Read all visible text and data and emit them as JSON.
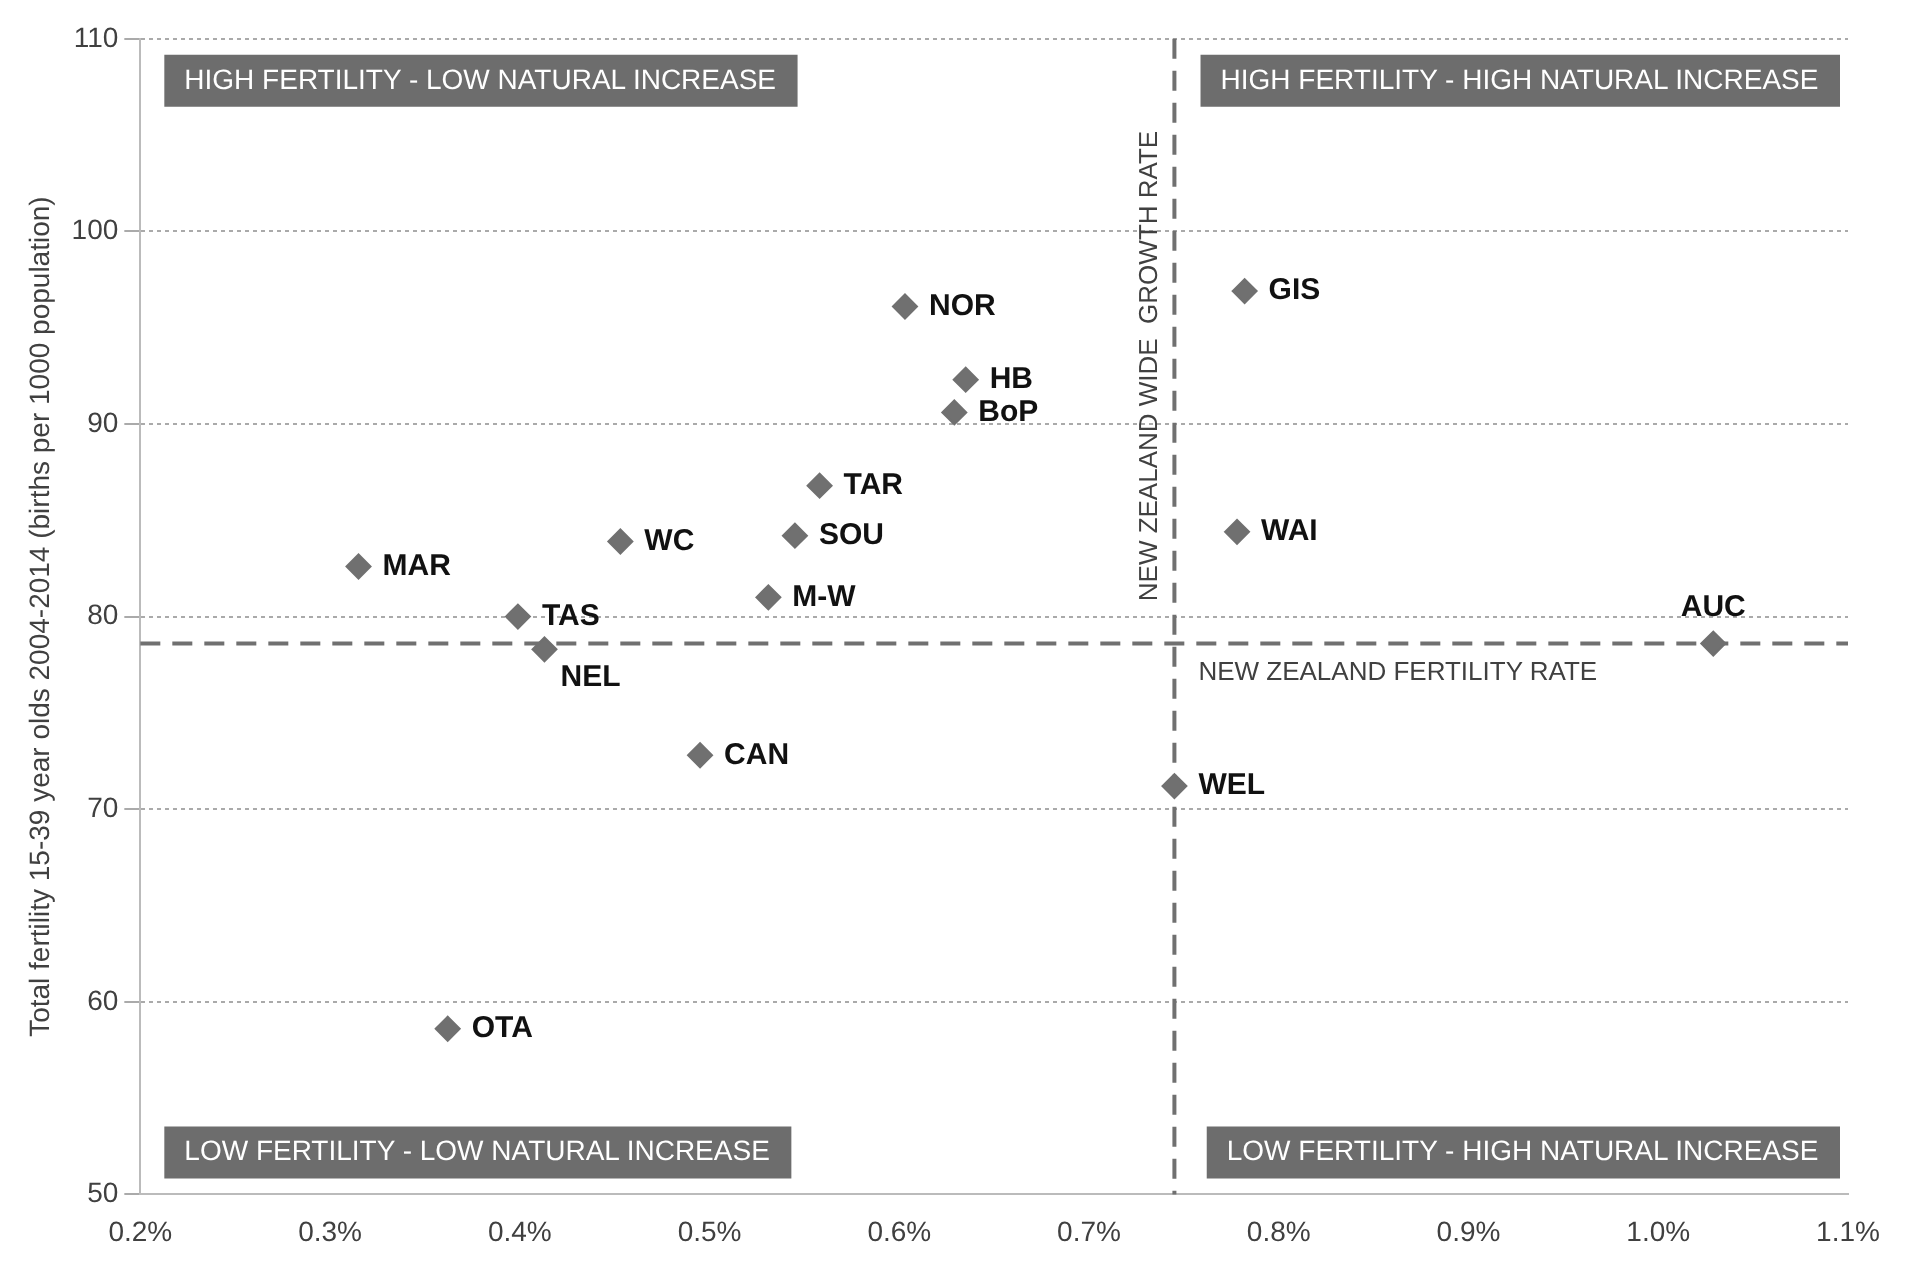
{
  "chart_data": {
    "type": "scatter",
    "ylabel": "Total fertility 15-39 year olds 2004-2014 (births per 1000 population)",
    "series": [
      {
        "color": "#707070",
        "x": [
          0.315,
          0.399,
          0.413,
          0.453,
          0.558,
          0.545,
          0.531,
          0.603,
          0.635,
          0.629,
          0.782,
          0.778,
          0.495,
          0.362,
          0.745,
          1.029
        ],
        "values": [
          82.6,
          80.0,
          78.3,
          83.9,
          86.8,
          84.2,
          81.0,
          96.1,
          92.3,
          90.6,
          96.9,
          84.4,
          72.8,
          58.6,
          71.2,
          78.6
        ]
      }
    ],
    "marker": "diamond",
    "grid": "y",
    "legend": false,
    "xlim": [
      0.2,
      1.1
    ],
    "ylim": [
      50,
      110
    ],
    "xticks": [
      {
        "value": 0.2,
        "label": "0.2%"
      },
      {
        "value": 0.3,
        "label": "0.3%"
      },
      {
        "value": 0.4,
        "label": "0.4%"
      },
      {
        "value": 0.5,
        "label": "0.5%"
      },
      {
        "value": 0.6,
        "label": "0.6%"
      },
      {
        "value": 0.7,
        "label": "0.7%"
      },
      {
        "value": 0.8,
        "label": "0.8%"
      },
      {
        "value": 0.9,
        "label": "0.9%"
      },
      {
        "value": 1.0,
        "label": "1.0%"
      },
      {
        "value": 1.1,
        "label": "1.1%"
      }
    ],
    "yticks": [
      50,
      60,
      70,
      80,
      90,
      100,
      110
    ],
    "ref_lines": [
      {
        "axis": "x",
        "value": 0.745,
        "label": "NEW ZEALAND WIDE  GROWTH RATE",
        "color": "#707070",
        "line_style": "dashed"
      },
      {
        "axis": "y",
        "value": 78.6,
        "label": "NEW ZEALAND FERTILITY RATE",
        "color": "#707070",
        "line_style": "dashed"
      }
    ],
    "annotations": [
      "HIGH FERTILITY - LOW NATURAL INCREASE",
      "HIGH FERTILITY - HIGH NATURAL INCREASE",
      "LOW FERTILITY - LOW NATURAL INCREASE",
      "LOW FERTILITY - HIGH NATURAL INCREASE",
      {
        "text": "MAR",
        "x": 0.315,
        "y": 82.6
      },
      {
        "text": "TAS",
        "x": 0.399,
        "y": 80.0
      },
      {
        "text": "NEL",
        "x": 0.413,
        "y": 78.3
      },
      {
        "text": "WC",
        "x": 0.453,
        "y": 83.9
      },
      {
        "text": "TAR",
        "x": 0.558,
        "y": 86.8
      },
      {
        "text": "SOU",
        "x": 0.545,
        "y": 84.2
      },
      {
        "text": "M-W",
        "x": 0.531,
        "y": 81.0
      },
      {
        "text": "NOR",
        "x": 0.603,
        "y": 96.1
      },
      {
        "text": "HB",
        "x": 0.635,
        "y": 92.3
      },
      {
        "text": "BoP",
        "x": 0.629,
        "y": 90.6
      },
      {
        "text": "GIS",
        "x": 0.782,
        "y": 96.9
      },
      {
        "text": "WAI",
        "x": 0.778,
        "y": 84.4
      },
      {
        "text": "CAN",
        "x": 0.495,
        "y": 72.8
      },
      {
        "text": "OTA",
        "x": 0.362,
        "y": 58.6
      },
      {
        "text": "WEL",
        "x": 0.745,
        "y": 71.2
      },
      {
        "text": "AUC",
        "x": 1.029,
        "y": 78.6
      }
    ]
  }
}
